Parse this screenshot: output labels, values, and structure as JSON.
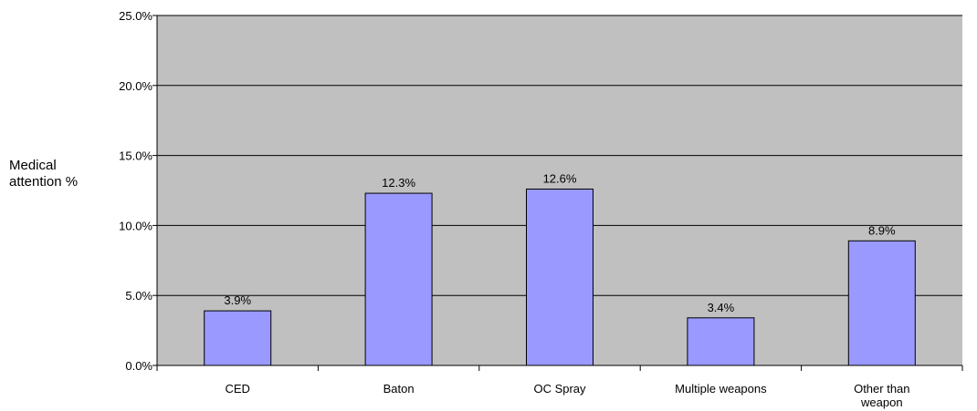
{
  "chart_data": {
    "type": "bar",
    "title": "",
    "xlabel": "",
    "ylabel_lines": [
      "Medical",
      "attention %"
    ],
    "categories": [
      [
        "CED"
      ],
      [
        "Baton"
      ],
      [
        "OC Spray"
      ],
      [
        "Multiple weapons"
      ],
      [
        "Other than",
        "weapon"
      ]
    ],
    "values": [
      3.9,
      12.3,
      12.6,
      3.4,
      8.9
    ],
    "value_labels": [
      "3.9%",
      "12.3%",
      "12.6%",
      "3.4%",
      "8.9%"
    ],
    "ylim": [
      0,
      25
    ],
    "yticks": [
      0,
      5,
      10,
      15,
      20,
      25
    ],
    "ytick_labels": [
      "0.0%",
      "5.0%",
      "10.0%",
      "15.0%",
      "20.0%",
      "25.0%"
    ],
    "grid": true,
    "legend": "none",
    "colors": {
      "plot_background": "#c0c0c0",
      "bar_fill": "#9999ff",
      "bar_stroke": "#000000",
      "gridline": "#000000"
    }
  }
}
